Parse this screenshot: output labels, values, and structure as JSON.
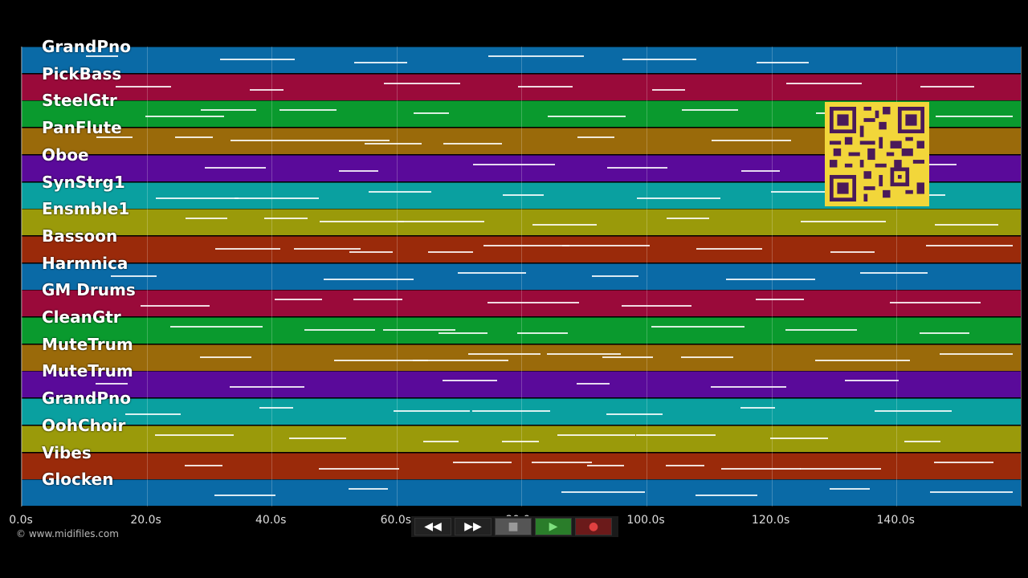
{
  "app": {
    "copyright": "© www.midifiles.com"
  },
  "tracks": [
    {
      "name": "GrandPno",
      "color": "#0a6aa6"
    },
    {
      "name": "PickBass",
      "color": "#9a0a3a"
    },
    {
      "name": "SteelGtr",
      "color": "#0a9a2e"
    },
    {
      "name": "PanFlute",
      "color": "#9a6a0a"
    },
    {
      "name": "Oboe",
      "color": "#5a0a9a"
    },
    {
      "name": "SynStrg1",
      "color": "#0aa0a0"
    },
    {
      "name": "Ensmble1",
      "color": "#9a9a0a"
    },
    {
      "name": "Bassoon",
      "color": "#9a2a0a"
    },
    {
      "name": "Harmnica",
      "color": "#0a6aa6"
    },
    {
      "name": "GM Drums",
      "color": "#9a0a3a"
    },
    {
      "name": "CleanGtr",
      "color": "#0a9a2e"
    },
    {
      "name": "MuteTrum",
      "color": "#9a6a0a"
    },
    {
      "name": "MuteTrum",
      "color": "#5a0a9a"
    },
    {
      "name": "GrandPno",
      "color": "#0aa0a0"
    },
    {
      "name": "OohChoir",
      "color": "#9a9a0a"
    },
    {
      "name": "Vibes",
      "color": "#9a2a0a"
    },
    {
      "name": "Glocken",
      "color": "#0a6aa6"
    }
  ],
  "timeline": {
    "ticks": [
      "0.0s",
      "20.0s",
      "40.0s",
      "60.0s",
      "80.0s",
      "100.0s",
      "120.0s",
      "140.0s"
    ],
    "duration_seconds": 159
  },
  "controls": {
    "rewind": "◀◀",
    "forward": "▶▶",
    "stop": "■",
    "play": "▶",
    "record": "●"
  }
}
